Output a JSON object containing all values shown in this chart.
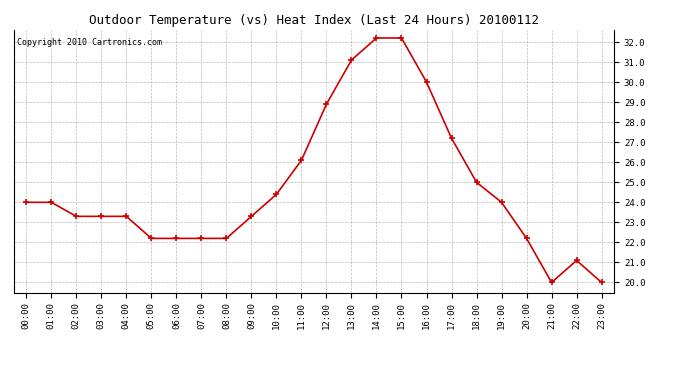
{
  "title": "Outdoor Temperature (vs) Heat Index (Last 24 Hours) 20100112",
  "copyright_text": "Copyright 2010 Cartronics.com",
  "line_color": "#cc0000",
  "marker": "+",
  "marker_size": 5,
  "background_color": "#ffffff",
  "plot_bg_color": "#ffffff",
  "grid_color": "#bbbbbb",
  "grid_style": "--",
  "x_labels": [
    "00:00",
    "01:00",
    "02:00",
    "03:00",
    "04:00",
    "05:00",
    "06:00",
    "07:00",
    "08:00",
    "09:00",
    "10:00",
    "11:00",
    "12:00",
    "13:00",
    "14:00",
    "15:00",
    "16:00",
    "17:00",
    "18:00",
    "19:00",
    "20:00",
    "21:00",
    "22:00",
    "23:00"
  ],
  "y_values": [
    24.0,
    24.0,
    23.3,
    23.3,
    23.3,
    22.2,
    22.2,
    22.2,
    22.2,
    23.3,
    24.4,
    26.1,
    28.9,
    31.1,
    32.2,
    32.2,
    30.0,
    27.2,
    25.0,
    24.0,
    22.2,
    20.0,
    21.1,
    20.0
  ],
  "ylim": [
    19.5,
    32.6
  ],
  "yticks": [
    20.0,
    21.0,
    22.0,
    23.0,
    24.0,
    25.0,
    26.0,
    27.0,
    28.0,
    29.0,
    30.0,
    31.0,
    32.0
  ],
  "title_fontsize": 9,
  "tick_fontsize": 6.5,
  "copyright_fontsize": 6,
  "line_width": 1.2,
  "marker_edge_width": 1.2
}
